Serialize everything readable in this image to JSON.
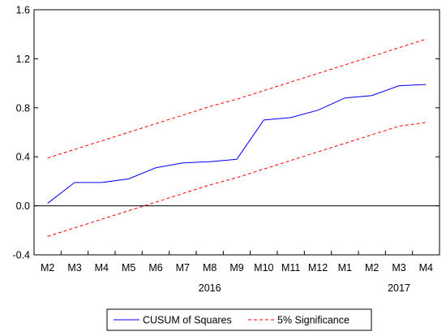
{
  "chart_data": {
    "type": "line",
    "title": "",
    "xlabel": "",
    "ylabel": "",
    "categories": [
      "M2",
      "M3",
      "M4",
      "M5",
      "M6",
      "M7",
      "M8",
      "M9",
      "M10",
      "M11",
      "M12",
      "M1",
      "M2",
      "M3",
      "M4"
    ],
    "year_labels": [
      {
        "label": "2016",
        "at_index": 6
      },
      {
        "label": "2017",
        "at_index": 13
      }
    ],
    "ylim": [
      -0.4,
      1.6
    ],
    "yticks": [
      -0.4,
      0.0,
      0.4,
      0.8,
      1.2,
      1.6
    ],
    "ytick_labels": [
      "-0.4",
      "0.0",
      "0.4",
      "0.8",
      "1.2",
      "1.6"
    ],
    "zero_line": true,
    "grid": false,
    "legend_position": "bottom",
    "series": [
      {
        "name": "CUSUM of Squares",
        "style": "solid",
        "color": "#0000ff",
        "values": [
          0.02,
          0.19,
          0.19,
          0.22,
          0.31,
          0.35,
          0.36,
          0.38,
          0.7,
          0.72,
          0.78,
          0.88,
          0.9,
          0.98,
          0.99
        ]
      },
      {
        "name": "5% Significance",
        "style": "dashed",
        "color": "#ff0000",
        "values": [
          0.39,
          0.46,
          0.53,
          0.6,
          0.67,
          0.74,
          0.81,
          0.87,
          0.94,
          1.01,
          1.08,
          1.15,
          1.22,
          1.29,
          1.36
        ]
      },
      {
        "name": "",
        "style": "dashed",
        "color": "#ff0000",
        "values": [
          -0.25,
          -0.18,
          -0.11,
          -0.04,
          0.03,
          0.1,
          0.17,
          0.23,
          0.3,
          0.37,
          0.44,
          0.51,
          0.58,
          0.65,
          0.68
        ]
      }
    ],
    "legend": [
      {
        "label": "CUSUM of Squares",
        "style": "solid",
        "color": "#0000ff"
      },
      {
        "label": "5% Significance",
        "style": "dashed",
        "color": "#ff0000"
      }
    ]
  }
}
